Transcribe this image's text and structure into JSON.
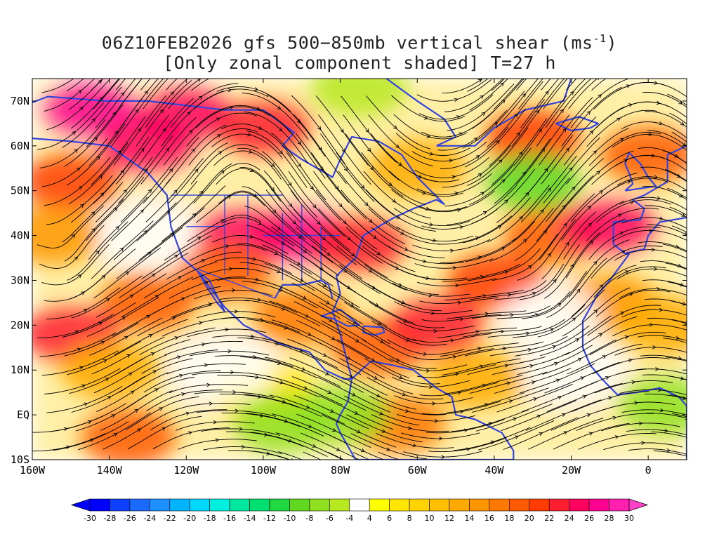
{
  "title": {
    "line1_prefix": "06Z10FEB2026 gfs 500−850mb vertical shear (ms",
    "line1_sup": "-1",
    "line1_suffix": ")",
    "line2": "[Only zonal component shaded] T=27 h"
  },
  "map": {
    "lon_range": [
      -160,
      10
    ],
    "lat_range": [
      -10,
      75
    ],
    "lat_ticks": [
      {
        "value": 70,
        "label": "70N"
      },
      {
        "value": 60,
        "label": "60N"
      },
      {
        "value": 50,
        "label": "50N"
      },
      {
        "value": 40,
        "label": "40N"
      },
      {
        "value": 30,
        "label": "30N"
      },
      {
        "value": 20,
        "label": "20N"
      },
      {
        "value": 10,
        "label": "10N"
      },
      {
        "value": 0,
        "label": "EQ"
      },
      {
        "value": -10,
        "label": "10S"
      }
    ],
    "lon_ticks": [
      {
        "value": -160,
        "label": "160W"
      },
      {
        "value": -140,
        "label": "140W"
      },
      {
        "value": -120,
        "label": "120W"
      },
      {
        "value": -100,
        "label": "100W"
      },
      {
        "value": -80,
        "label": "80W"
      },
      {
        "value": -60,
        "label": "60W"
      },
      {
        "value": -40,
        "label": "40W"
      },
      {
        "value": -20,
        "label": "20W"
      },
      {
        "value": 0,
        "label": "0"
      }
    ],
    "coastline_color": "#3344dd",
    "streamline_color": "#000000"
  },
  "colorbar": {
    "labels": [
      "-30",
      "-28",
      "-26",
      "-24",
      "-22",
      "-20",
      "-18",
      "-16",
      "-14",
      "-12",
      "-10",
      "-8",
      "-6",
      "-4",
      "4",
      "6",
      "8",
      "10",
      "12",
      "14",
      "16",
      "18",
      "20",
      "22",
      "24",
      "26",
      "28",
      "30"
    ],
    "colors": [
      "#0000ff",
      "#1040ff",
      "#1a6aff",
      "#1e90ff",
      "#00b4ff",
      "#00d8ff",
      "#00f0e0",
      "#00e8a0",
      "#00e070",
      "#20d840",
      "#60d820",
      "#90e020",
      "#b8e820",
      "#ffffff",
      "#ffff00",
      "#ffe600",
      "#ffd200",
      "#ffbe00",
      "#ffaa00",
      "#ff9600",
      "#ff7800",
      "#ff5a00",
      "#ff3c00",
      "#ff1e30",
      "#ff0060",
      "#ff0090",
      "#ff20b0"
    ],
    "end_low_color": "#0000ff",
    "end_high_color": "#ff40c8"
  },
  "shear_field": {
    "units": "m/s",
    "blobs": [
      {
        "lon": -145,
        "lat": 68,
        "value": 26
      },
      {
        "lon": -120,
        "lat": 67,
        "value": 25
      },
      {
        "lon": -100,
        "lat": 64,
        "value": 22
      },
      {
        "lon": -150,
        "lat": 52,
        "value": 20
      },
      {
        "lon": -130,
        "lat": 60,
        "value": 24
      },
      {
        "lon": -90,
        "lat": 40,
        "value": 26
      },
      {
        "lon": -105,
        "lat": 40,
        "value": 24
      },
      {
        "lon": -75,
        "lat": 38,
        "value": 22
      },
      {
        "lon": -110,
        "lat": 32,
        "value": 18
      },
      {
        "lon": -130,
        "lat": 25,
        "value": 18
      },
      {
        "lon": -150,
        "lat": 18,
        "value": 22
      },
      {
        "lon": -140,
        "lat": 10,
        "value": 12
      },
      {
        "lon": -135,
        "lat": -5,
        "value": 18
      },
      {
        "lon": -90,
        "lat": 22,
        "value": 16
      },
      {
        "lon": -70,
        "lat": 15,
        "value": 18
      },
      {
        "lon": -55,
        "lat": 20,
        "value": 22
      },
      {
        "lon": -40,
        "lat": 30,
        "value": 20
      },
      {
        "lon": -25,
        "lat": 40,
        "value": 18
      },
      {
        "lon": -10,
        "lat": 42,
        "value": 24
      },
      {
        "lon": -60,
        "lat": 55,
        "value": 12
      },
      {
        "lon": -30,
        "lat": 62,
        "value": 20
      },
      {
        "lon": 0,
        "lat": 58,
        "value": 18
      },
      {
        "lon": -65,
        "lat": -2,
        "value": 16
      },
      {
        "lon": -45,
        "lat": 8,
        "value": 12
      },
      {
        "lon": -100,
        "lat": 5,
        "value": 6
      },
      {
        "lon": -10,
        "lat": 25,
        "value": 14
      },
      {
        "lon": 5,
        "lat": 20,
        "value": 12
      },
      {
        "lon": -155,
        "lat": 40,
        "value": 14
      },
      {
        "lon": -30,
        "lat": 52,
        "value": -10
      },
      {
        "lon": -95,
        "lat": -2,
        "value": -8
      },
      {
        "lon": -80,
        "lat": 0,
        "value": -8
      },
      {
        "lon": 5,
        "lat": 2,
        "value": -8
      },
      {
        "lon": -75,
        "lat": 73,
        "value": -6
      },
      {
        "lon": -20,
        "lat": 10,
        "value": -4
      },
      {
        "lon": -130,
        "lat": 40,
        "value": 0
      },
      {
        "lon": -25,
        "lat": 22,
        "value": 0
      },
      {
        "lon": -110,
        "lat": 10,
        "value": 0
      }
    ]
  }
}
